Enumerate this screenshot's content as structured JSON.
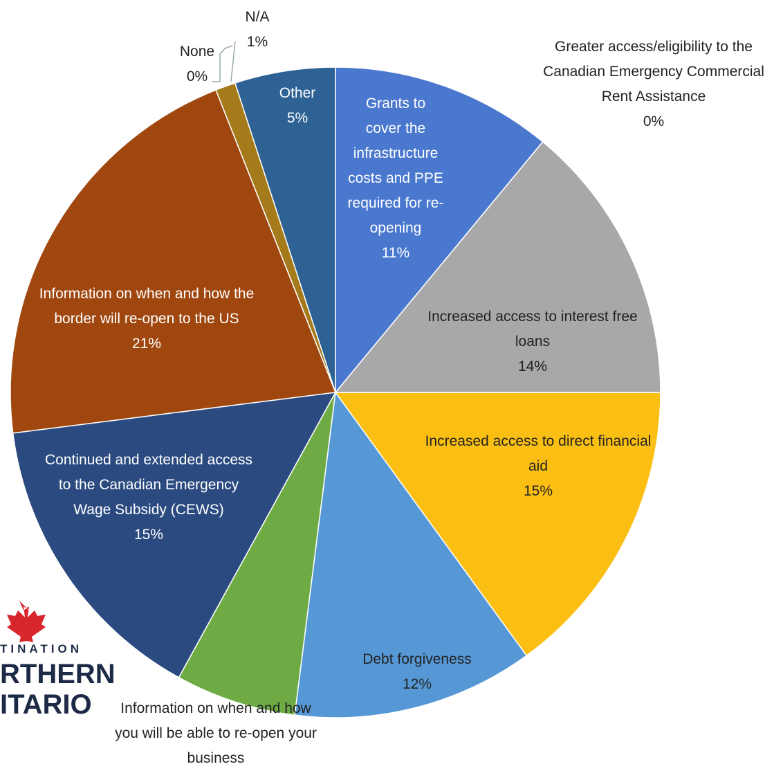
{
  "chart_data": {
    "type": "pie",
    "categories": [
      "Grants to cover the infrastructure costs and PPE required for re-opening",
      "Greater access/eligibility to the Canadian Emergency Commercial Rent Assistance",
      "Increased access to interest free loans",
      "Increased access to direct financial aid",
      "Debt forgiveness",
      "Information on when and how you will be able to re-open your business",
      "Continued and extended access to the Canadian Emergency Wage Subsidy (CEWS)",
      "Information on when and how the border will re-open to the US",
      "None",
      "N/A",
      "Other"
    ],
    "values": [
      11,
      0,
      14,
      15,
      12,
      6,
      15,
      21,
      0,
      1,
      5
    ],
    "value_labels": [
      "11%",
      "0%",
      "14%",
      "15%",
      "12%",
      "6%",
      "15%",
      "21%",
      "0%",
      "1%",
      "5%"
    ],
    "colors": [
      "#4a78cf",
      "#e07b2a",
      "#a8a8a8",
      "#fbbf14",
      "#5698d6",
      "#6eab45",
      "#2a4a80",
      "#a0470f",
      "#6a6a6a",
      "#a47a1a",
      "#2e6194"
    ]
  },
  "logo": {
    "lines": [
      "TINATION",
      "RTHERN",
      "ITARIO"
    ]
  }
}
